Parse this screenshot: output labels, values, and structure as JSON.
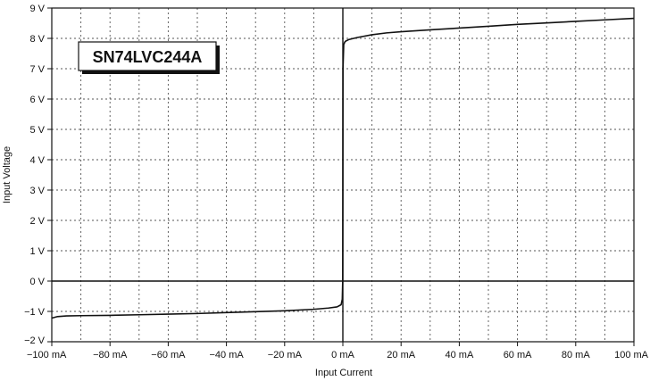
{
  "chart_data": {
    "type": "line",
    "title": "",
    "annotation": "SN74LVC244A",
    "xlabel": "Input Current",
    "ylabel": "Input Voltage",
    "xlim": [
      -100,
      100
    ],
    "ylim": [
      -2,
      9
    ],
    "x_ticks": [
      -100,
      -80,
      -60,
      -40,
      -20,
      0,
      20,
      40,
      60,
      80,
      100
    ],
    "x_tick_labels": [
      "−100 mA",
      "−80 mA",
      "−60 mA",
      "−40 mA",
      "−20 mA",
      "0 mA",
      "20 mA",
      "40 mA",
      "60 mA",
      "80 mA",
      "100 mA"
    ],
    "y_ticks": [
      -2,
      -1,
      0,
      1,
      2,
      3,
      4,
      5,
      6,
      7,
      8,
      9
    ],
    "y_tick_labels": [
      "−2 V",
      "−1 V",
      "0 V",
      "1 V",
      "2 V",
      "3 V",
      "4 V",
      "5 V",
      "6 V",
      "7 V",
      "8 V",
      "9 V"
    ],
    "grid": true,
    "series": [
      {
        "color": "#111111",
        "points": [
          [
            -100,
            -1.22
          ],
          [
            -98,
            -1.17
          ],
          [
            -95,
            -1.15
          ],
          [
            -90,
            -1.14
          ],
          [
            -80,
            -1.13
          ],
          [
            -70,
            -1.11
          ],
          [
            -60,
            -1.09
          ],
          [
            -50,
            -1.07
          ],
          [
            -40,
            -1.04
          ],
          [
            -30,
            -1.01
          ],
          [
            -20,
            -0.98
          ],
          [
            -10,
            -0.93
          ],
          [
            -5,
            -0.89
          ],
          [
            -2,
            -0.85
          ],
          [
            -0.6,
            -0.78
          ],
          [
            -0.2,
            -0.6
          ],
          [
            -0.05,
            0.0
          ],
          [
            0,
            3.0
          ],
          [
            0.05,
            7.0
          ],
          [
            0.3,
            7.8
          ],
          [
            0.8,
            7.9
          ],
          [
            2,
            7.96
          ],
          [
            5,
            8.03
          ],
          [
            10,
            8.12
          ],
          [
            15,
            8.18
          ],
          [
            20,
            8.22
          ],
          [
            30,
            8.28
          ],
          [
            40,
            8.34
          ],
          [
            50,
            8.4
          ],
          [
            60,
            8.46
          ],
          [
            70,
            8.51
          ],
          [
            80,
            8.56
          ],
          [
            90,
            8.61
          ],
          [
            100,
            8.66
          ]
        ]
      }
    ]
  }
}
